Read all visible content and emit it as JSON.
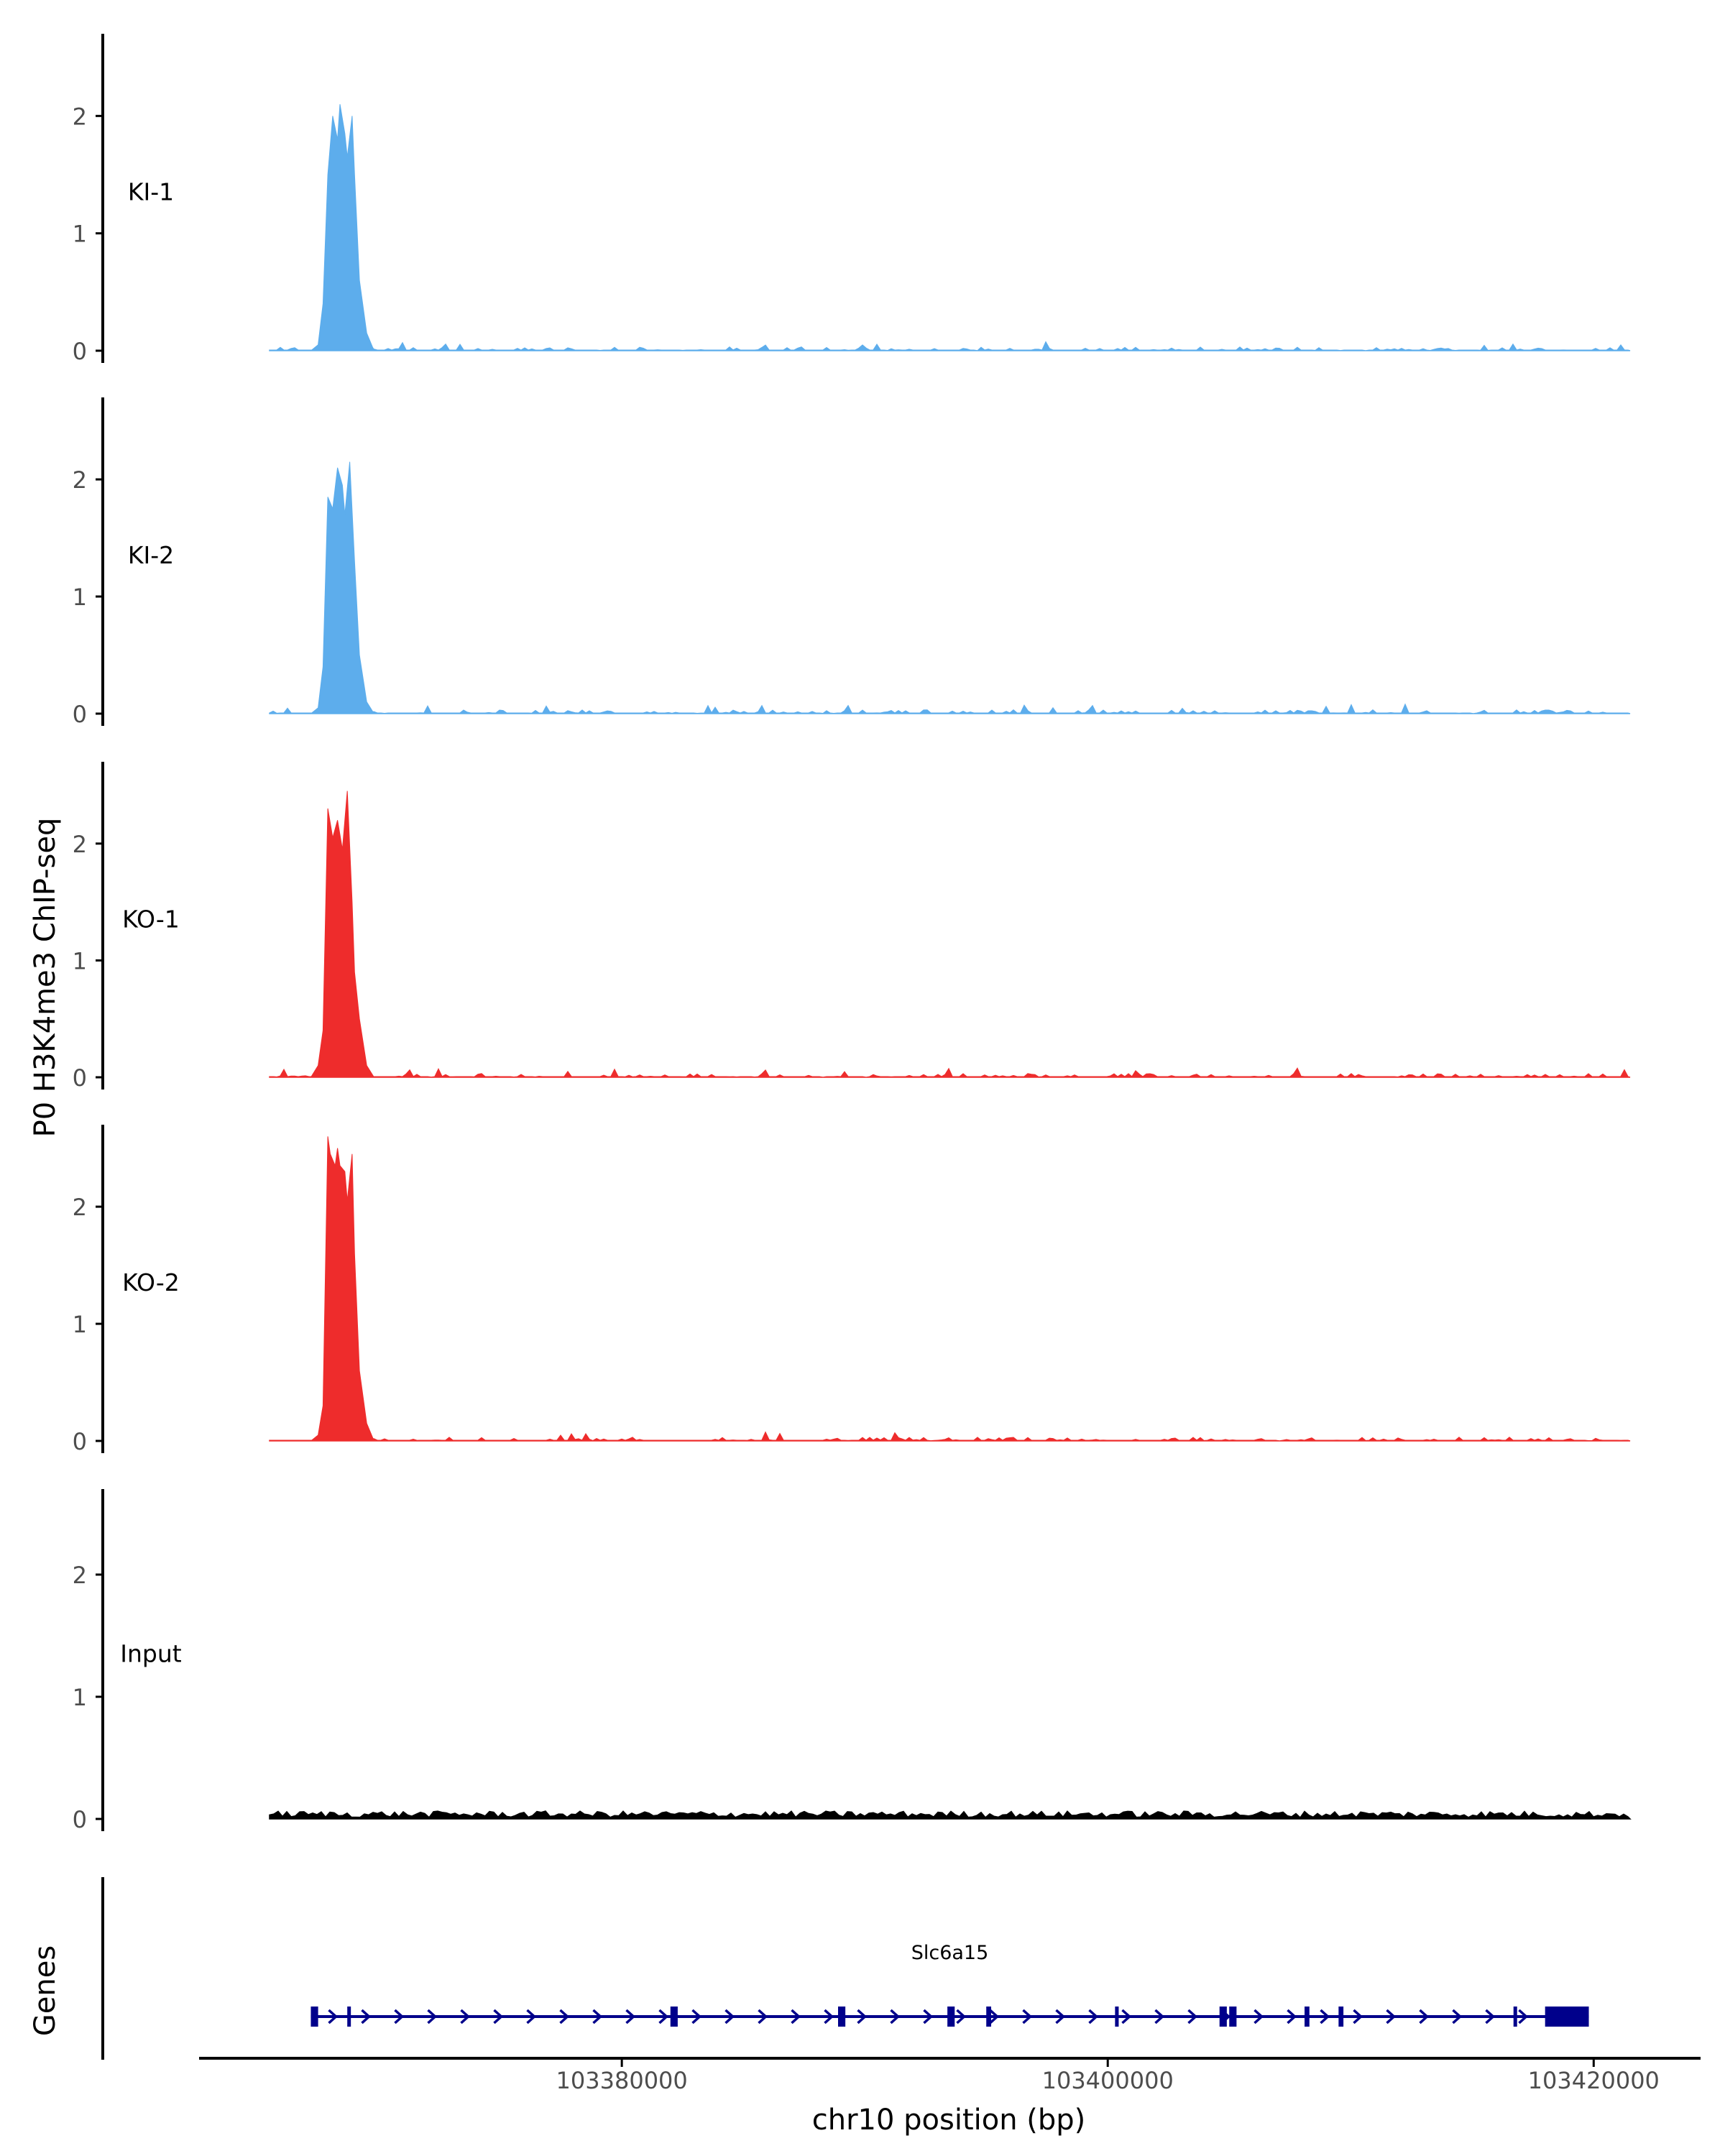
{
  "figure": {
    "ylabel": "P0 H3K4me3 ChIP-seq",
    "genes_label": "Genes",
    "xlabel": "chr10 position (bp)"
  },
  "colors": {
    "ki": "#5DADEC",
    "ko": "#EE2C2C",
    "input": "#000000",
    "gene": "#00008B",
    "axis": "#000000"
  },
  "chart_data": {
    "type": "area",
    "x_range": [
      103365500,
      103421500
    ],
    "ylim": [
      0,
      2.7
    ],
    "y_ticks": [
      0,
      1,
      2
    ],
    "y_tick_labels": [
      "0",
      "1",
      "2"
    ],
    "x_ticks": [
      103380000,
      103400000,
      103420000
    ],
    "x_tick_labels": [
      "103380000",
      "103400000",
      "103420000"
    ],
    "grid": false,
    "series": [
      {
        "name": "KI-1",
        "color": "#5DADEC",
        "x": [
          103367200,
          103367500,
          103367700,
          103367900,
          103368100,
          103368300,
          103368400,
          103368600,
          103368700,
          103368900,
          103369000,
          103369200,
          103369500,
          103369800
        ],
        "y": [
          0,
          0.05,
          0.4,
          1.5,
          2.0,
          1.8,
          2.1,
          1.85,
          1.65,
          2.0,
          1.5,
          0.6,
          0.15,
          0
        ]
      },
      {
        "name": "KI-2",
        "color": "#5DADEC",
        "x": [
          103367200,
          103367500,
          103367700,
          103367900,
          103368000,
          103368100,
          103368300,
          103368500,
          103368600,
          103368800,
          103369000,
          103369200,
          103369500,
          103369800
        ],
        "y": [
          0,
          0.05,
          0.4,
          1.85,
          1.8,
          1.75,
          2.1,
          1.95,
          1.7,
          2.15,
          1.3,
          0.5,
          0.1,
          0
        ]
      },
      {
        "name": "KO-1",
        "color": "#EE2C2C",
        "x": [
          103367200,
          103367500,
          103367700,
          103367900,
          103368100,
          103368300,
          103368500,
          103368700,
          103368900,
          103369000,
          103369200,
          103369500,
          103369800
        ],
        "y": [
          0,
          0.1,
          0.4,
          2.3,
          2.05,
          2.2,
          1.95,
          2.45,
          1.5,
          0.9,
          0.5,
          0.1,
          0
        ]
      },
      {
        "name": "KO-2",
        "color": "#EE2C2C",
        "x": [
          103367200,
          103367500,
          103367700,
          103367900,
          103368000,
          103368200,
          103368300,
          103368400,
          103368600,
          103368700,
          103368900,
          103369000,
          103369200,
          103369500,
          103369800
        ],
        "y": [
          0,
          0.05,
          0.3,
          2.6,
          2.45,
          2.35,
          2.5,
          2.35,
          2.3,
          2.05,
          2.45,
          1.6,
          0.6,
          0.15,
          0
        ]
      },
      {
        "name": "Input",
        "color": "#000000",
        "x": [
          103365500,
          103421500
        ],
        "y": [
          0.02,
          0.02
        ]
      }
    ],
    "genes": [
      {
        "name": "Slc6a15",
        "start": 103367200,
        "end": 103419800,
        "strand": "+",
        "exons": [
          [
            103367200,
            103367500
          ],
          [
            103368700,
            103368800
          ],
          [
            103382000,
            103382300
          ],
          [
            103388900,
            103389200
          ],
          [
            103393400,
            103393700
          ],
          [
            103395000,
            103395200
          ],
          [
            103400300,
            103400450
          ],
          [
            103404600,
            103404900
          ],
          [
            103405000,
            103405300
          ],
          [
            103408100,
            103408300
          ],
          [
            103409500,
            103409700
          ],
          [
            103416700,
            103416800
          ],
          [
            103418000,
            103419800
          ]
        ]
      }
    ]
  }
}
